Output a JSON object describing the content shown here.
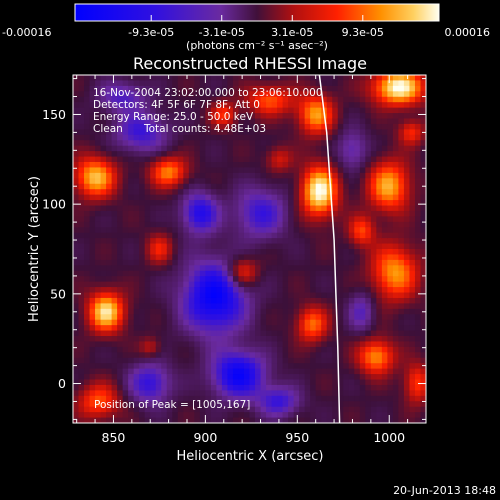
{
  "chart_data": {
    "type": "heatmap",
    "title": "Reconstructed RHESSI Image",
    "xlabel": "Heliocentric X (arcsec)",
    "ylabel": "Heliocentric Y (arcsec)",
    "xlim": [
      828,
      1020
    ],
    "ylim": [
      -22,
      172
    ],
    "xticks": [
      850,
      900,
      950,
      1000
    ],
    "yticks": [
      0,
      50,
      100,
      150
    ],
    "colorbar": {
      "min": -0.00016,
      "max": 0.00016,
      "ticks": [
        "-0.00016",
        "-9.3e-05",
        "-3.1e-05",
        "3.1e-05",
        "9.3e-05",
        "0.00016"
      ],
      "tick_values": [
        -0.00016,
        -9.3e-05,
        -3.1e-05,
        3.1e-05,
        9.3e-05,
        0.00016
      ],
      "unit_label": "(photons cm⁻² s⁻¹ asec⁻²)"
    },
    "annotations": {
      "time_range": "16-Nov-2004 23:02:00.000 to 23:06:10.000",
      "detectors": "Detectors: 4F 5F 6F 7F 8F, Att 0",
      "energy": "Energy Range: 25.0 - 50.0 keV",
      "clean": "Clean",
      "counts": "Total counts: 4.48E+03",
      "peak": "Position of Peak = [1005,167]"
    },
    "peak": {
      "x": 1005,
      "y": 167
    },
    "limb": [
      [
        962,
        172
      ],
      [
        966,
        140
      ],
      [
        968,
        110
      ],
      [
        970,
        80
      ],
      [
        971,
        50
      ],
      [
        972,
        20
      ],
      [
        973,
        -22
      ]
    ],
    "sources": [
      {
        "x": 962,
        "y": 107,
        "sx": 7,
        "sy": 10,
        "a": 1.0
      },
      {
        "x": 1005,
        "y": 165,
        "sx": 10,
        "sy": 7,
        "a": 1.0
      },
      {
        "x": 846,
        "y": 40,
        "sx": 7,
        "sy": 8,
        "a": 0.9
      },
      {
        "x": 840,
        "y": 115,
        "sx": 8,
        "sy": 8,
        "a": 0.8
      },
      {
        "x": 880,
        "y": 118,
        "sx": 7,
        "sy": 6,
        "a": 0.65
      },
      {
        "x": 1000,
        "y": 110,
        "sx": 8,
        "sy": 10,
        "a": 0.75
      },
      {
        "x": 1003,
        "y": 62,
        "sx": 9,
        "sy": 11,
        "a": 0.7
      },
      {
        "x": 960,
        "y": 150,
        "sx": 7,
        "sy": 8,
        "a": 0.7
      },
      {
        "x": 935,
        "y": 158,
        "sx": 9,
        "sy": 6,
        "a": 0.55
      },
      {
        "x": 993,
        "y": 15,
        "sx": 7,
        "sy": 7,
        "a": 0.7
      },
      {
        "x": 958,
        "y": 33,
        "sx": 6,
        "sy": 7,
        "a": 0.6
      },
      {
        "x": 842,
        "y": -10,
        "sx": 8,
        "sy": 7,
        "a": 0.55
      },
      {
        "x": 920,
        "y": 62,
        "sx": 6,
        "sy": 6,
        "a": 0.55
      },
      {
        "x": 1015,
        "y": 0,
        "sx": 5,
        "sy": 8,
        "a": 0.5
      },
      {
        "x": 910,
        "y": 150,
        "sx": 5,
        "sy": 5,
        "a": 0.45
      },
      {
        "x": 875,
        "y": 75,
        "sx": 5,
        "sy": 6,
        "a": 0.4
      },
      {
        "x": 985,
        "y": 85,
        "sx": 5,
        "sy": 6,
        "a": 0.5
      },
      {
        "x": 940,
        "y": 125,
        "sx": 5,
        "sy": 5,
        "a": 0.35
      },
      {
        "x": 870,
        "y": 20,
        "sx": 4,
        "sy": 4,
        "a": 0.3
      },
      {
        "x": 1012,
        "y": 140,
        "sx": 5,
        "sy": 5,
        "a": 0.45
      },
      {
        "x": 905,
        "y": 48,
        "sx": 12,
        "sy": 14,
        "a": -0.95
      },
      {
        "x": 918,
        "y": 5,
        "sx": 10,
        "sy": 9,
        "a": -0.9
      },
      {
        "x": 897,
        "y": 95,
        "sx": 7,
        "sy": 8,
        "a": -0.7
      },
      {
        "x": 930,
        "y": 95,
        "sx": 10,
        "sy": 10,
        "a": -0.55
      },
      {
        "x": 865,
        "y": 140,
        "sx": 10,
        "sy": 8,
        "a": -0.55
      },
      {
        "x": 855,
        "y": 160,
        "sx": 9,
        "sy": 6,
        "a": -0.45
      },
      {
        "x": 980,
        "y": 130,
        "sx": 6,
        "sy": 8,
        "a": -0.4
      },
      {
        "x": 940,
        "y": -10,
        "sx": 8,
        "sy": 6,
        "a": -0.55
      },
      {
        "x": 870,
        "y": 0,
        "sx": 8,
        "sy": 8,
        "a": -0.6
      },
      {
        "x": 985,
        "y": 40,
        "sx": 5,
        "sy": 8,
        "a": -0.4
      }
    ]
  },
  "footer": {
    "timestamp": "20-Jun-2013 18:48"
  }
}
